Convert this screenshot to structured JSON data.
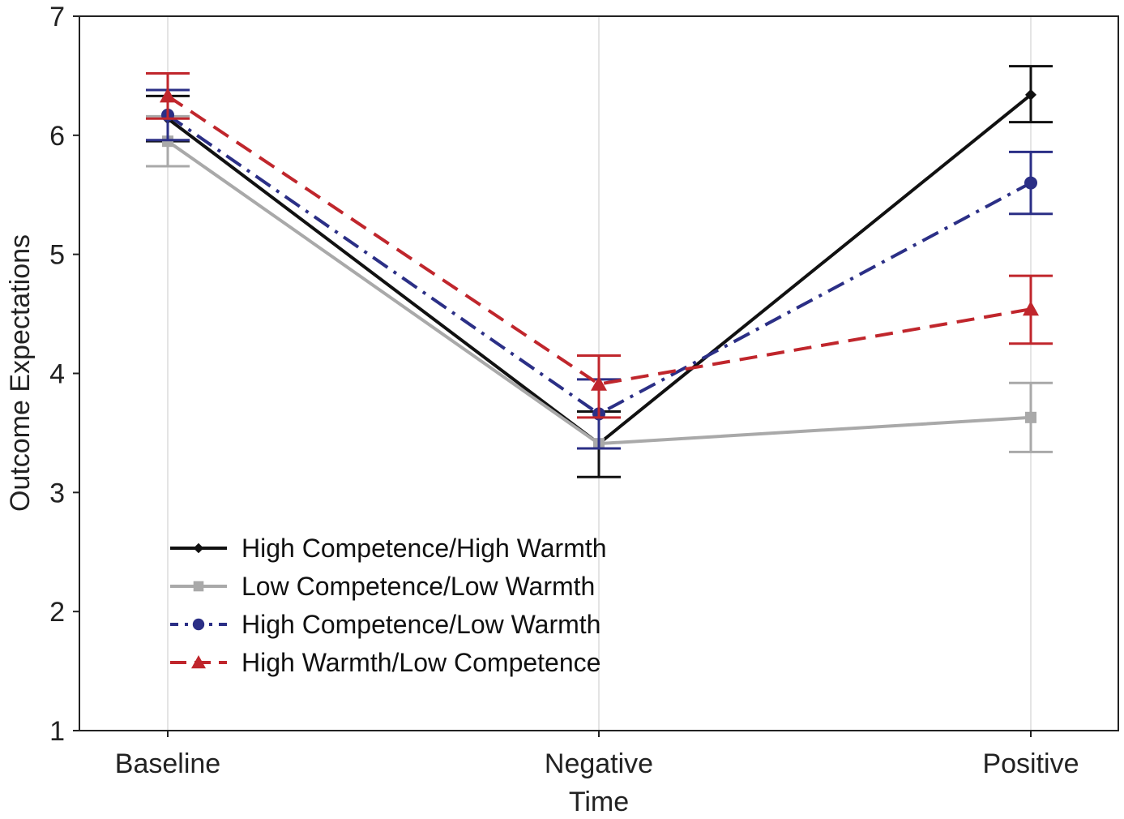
{
  "chart_data": {
    "type": "line",
    "title": "",
    "xlabel": "Time",
    "ylabel": "Outcome Expectations",
    "categories": [
      "Baseline",
      "Negative",
      "Positive"
    ],
    "ylim": [
      1,
      7
    ],
    "yticks": [
      "1",
      "2",
      "3",
      "4",
      "5",
      "6",
      "7"
    ],
    "grid": "vertical",
    "legend_position": "bottom-left",
    "series": [
      {
        "name": "High Competence/High Warmth",
        "values": [
          6.14,
          3.41,
          6.34
        ],
        "error_low": [
          5.95,
          3.13,
          6.11
        ],
        "error_high": [
          6.33,
          3.68,
          6.58
        ],
        "color": "#111111",
        "line_style": "solid",
        "marker": "diamond"
      },
      {
        "name": "Low Competence/Low Warmth",
        "values": [
          5.95,
          3.41,
          3.63
        ],
        "error_low": [
          5.74,
          3.41,
          3.34
        ],
        "error_high": [
          6.16,
          3.41,
          3.92
        ],
        "color": "#a9a9a9",
        "line_style": "solid",
        "marker": "square"
      },
      {
        "name": "High Competence/Low Warmth",
        "values": [
          6.17,
          3.66,
          5.6
        ],
        "error_low": [
          5.96,
          3.37,
          5.34
        ],
        "error_high": [
          6.38,
          3.95,
          5.86
        ],
        "color": "#2b2f86",
        "line_style": "dashdot",
        "marker": "circle"
      },
      {
        "name": "High Warmth/Low Competence",
        "values": [
          6.33,
          3.91,
          4.54
        ],
        "error_low": [
          6.14,
          3.63,
          4.25
        ],
        "error_high": [
          6.52,
          4.15,
          4.82
        ],
        "color": "#c0262c",
        "line_style": "dashed",
        "marker": "triangle"
      }
    ]
  }
}
